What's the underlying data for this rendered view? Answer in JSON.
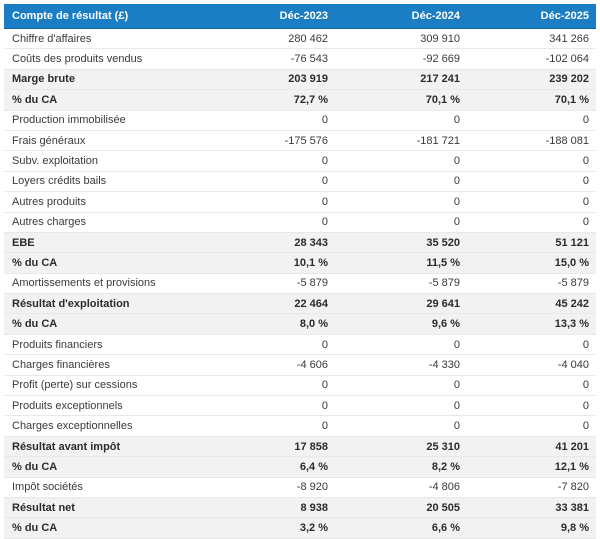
{
  "theme": {
    "header_bg": "#1b7dc4",
    "header_text": "#ffffff",
    "highlight_row_bg": "#f2f2f2",
    "row_border": "#e8e8e8",
    "text_color": "#3a3a3a"
  },
  "chart_data": {
    "type": "table",
    "title": "Compte de résultat (£)",
    "columns": [
      "Compte de résultat (£)",
      "Déc-2023",
      "Déc-2024",
      "Déc-2025"
    ],
    "rows": [
      {
        "label": "Chiffre d'affaires",
        "values": [
          "280 462",
          "309 910",
          "341 266"
        ],
        "highlight": false
      },
      {
        "label": "Coûts des produits vendus",
        "values": [
          "-76 543",
          "-92 669",
          "-102 064"
        ],
        "highlight": false
      },
      {
        "label": "Marge brute",
        "values": [
          "203 919",
          "217 241",
          "239 202"
        ],
        "highlight": true
      },
      {
        "label": "% du CA",
        "values": [
          "72,7 %",
          "70,1 %",
          "70,1 %"
        ],
        "highlight": true
      },
      {
        "label": "Production immobilisée",
        "values": [
          "0",
          "0",
          "0"
        ],
        "highlight": false
      },
      {
        "label": "Frais généraux",
        "values": [
          "-175 576",
          "-181 721",
          "-188 081"
        ],
        "highlight": false
      },
      {
        "label": "Subv. exploitation",
        "values": [
          "0",
          "0",
          "0"
        ],
        "highlight": false
      },
      {
        "label": "Loyers crédits bails",
        "values": [
          "0",
          "0",
          "0"
        ],
        "highlight": false
      },
      {
        "label": "Autres produits",
        "values": [
          "0",
          "0",
          "0"
        ],
        "highlight": false
      },
      {
        "label": "Autres charges",
        "values": [
          "0",
          "0",
          "0"
        ],
        "highlight": false
      },
      {
        "label": "EBE",
        "values": [
          "28 343",
          "35 520",
          "51 121"
        ],
        "highlight": true
      },
      {
        "label": "% du CA",
        "values": [
          "10,1 %",
          "11,5 %",
          "15,0 %"
        ],
        "highlight": true
      },
      {
        "label": "Amortissements et provisions",
        "values": [
          "-5 879",
          "-5 879",
          "-5 879"
        ],
        "highlight": false
      },
      {
        "label": "Résultat d'exploitation",
        "values": [
          "22 464",
          "29 641",
          "45 242"
        ],
        "highlight": true
      },
      {
        "label": "% du CA",
        "values": [
          "8,0 %",
          "9,6 %",
          "13,3 %"
        ],
        "highlight": true
      },
      {
        "label": "Produits financiers",
        "values": [
          "0",
          "0",
          "0"
        ],
        "highlight": false
      },
      {
        "label": "Charges financières",
        "values": [
          "-4 606",
          "-4 330",
          "-4 040"
        ],
        "highlight": false
      },
      {
        "label": "Profit (perte) sur cessions",
        "values": [
          "0",
          "0",
          "0"
        ],
        "highlight": false
      },
      {
        "label": "Produits exceptionnels",
        "values": [
          "0",
          "0",
          "0"
        ],
        "highlight": false
      },
      {
        "label": "Charges exceptionnelles",
        "values": [
          "0",
          "0",
          "0"
        ],
        "highlight": false
      },
      {
        "label": "Résultat avant impôt",
        "values": [
          "17 858",
          "25 310",
          "41 201"
        ],
        "highlight": true
      },
      {
        "label": "% du CA",
        "values": [
          "6,4 %",
          "8,2 %",
          "12,1 %"
        ],
        "highlight": true
      },
      {
        "label": "Impôt sociétés",
        "values": [
          "-8 920",
          "-4 806",
          "-7 820"
        ],
        "highlight": false
      },
      {
        "label": "Résultat net",
        "values": [
          "8 938",
          "20 505",
          "33 381"
        ],
        "highlight": true
      },
      {
        "label": "% du CA",
        "values": [
          "3,2 %",
          "6,6 %",
          "9,8 %"
        ],
        "highlight": true
      }
    ]
  }
}
